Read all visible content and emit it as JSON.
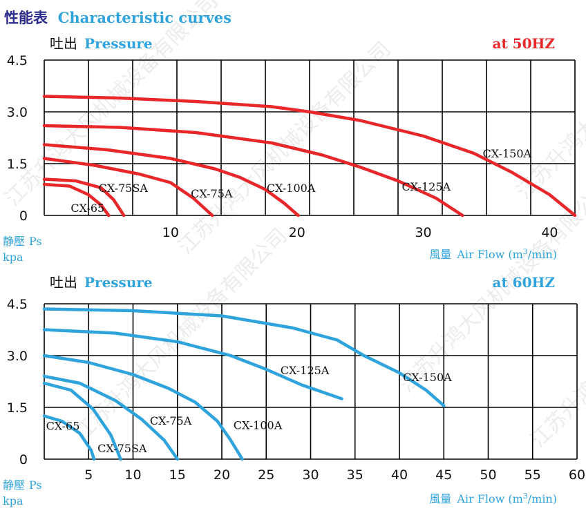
{
  "page_title": {
    "cn": "性能表",
    "en": "Characteristic curves",
    "color": "#2fa3dc",
    "cn_color": "#2a2a8a"
  },
  "colors": {
    "red_curve": "#e8272a",
    "blue_curve": "#2fa3dc",
    "grid": "#000000",
    "watermark": "#dddddd"
  },
  "watermark": "江苏升鸿大风机械设备有限公司",
  "chart_data": [
    {
      "type": "line",
      "frequency_label": "at  50HZ",
      "frequency_color": "#e8272a",
      "ylabel_cn": "吐出",
      "ylabel_en": "Pressure",
      "static_cn": "静壓",
      "static_en": "Ps",
      "unit": "kpa",
      "xlabel_cn": "風量",
      "xlabel_en_prefix": "Air Flow (m",
      "xlabel_sup": "3",
      "xlabel_en_suffix": "/min)",
      "xlim": [
        0,
        42
      ],
      "ylim": [
        0,
        4.5
      ],
      "grid": true,
      "x_ticks": [
        10,
        20,
        30,
        40
      ],
      "y_ticks": [
        "4.5",
        "3.0",
        "1.5",
        "0"
      ],
      "vgrid": [
        0,
        3.5,
        7,
        10.5,
        14,
        17.5,
        21,
        24.5,
        28,
        31.5,
        35,
        38.5,
        42
      ],
      "series": [
        {
          "name": "CX-65",
          "x": [
            0,
            2,
            3.5,
            4.5,
            5.1
          ],
          "y": [
            0.9,
            0.85,
            0.6,
            0.3,
            0
          ]
        },
        {
          "name": "CX-75SA",
          "x": [
            0,
            2.5,
            4.5,
            5.5,
            6.3
          ],
          "y": [
            1.05,
            1.0,
            0.8,
            0.45,
            0
          ]
        },
        {
          "name": "CX-75A",
          "x": [
            0,
            4,
            7.5,
            10,
            11.8,
            13.3
          ],
          "y": [
            1.65,
            1.45,
            1.2,
            0.95,
            0.5,
            0
          ]
        },
        {
          "name": "CX-100A",
          "x": [
            0,
            5,
            10,
            13.5,
            15.5,
            17.5,
            19,
            20.1
          ],
          "y": [
            2.05,
            1.9,
            1.65,
            1.35,
            1.1,
            0.75,
            0.35,
            0
          ]
        },
        {
          "name": "CX-125A",
          "x": [
            0,
            6,
            12,
            18,
            22,
            25,
            28,
            31,
            33.1
          ],
          "y": [
            2.6,
            2.55,
            2.4,
            2.1,
            1.75,
            1.4,
            1.0,
            0.5,
            0
          ]
        },
        {
          "name": "CX-150A",
          "x": [
            0,
            6,
            12,
            18,
            21,
            25,
            30,
            34,
            37,
            40,
            42
          ],
          "y": [
            3.45,
            3.4,
            3.3,
            3.15,
            3.0,
            2.75,
            2.3,
            1.8,
            1.25,
            0.6,
            0
          ]
        }
      ],
      "labels": [
        {
          "text": "CX-65",
          "x": 2.1,
          "y": 0.1
        },
        {
          "text": "CX-75SA",
          "x": 4.3,
          "y": 0.68
        },
        {
          "text": "CX-75A",
          "x": 11.6,
          "y": 0.52
        },
        {
          "text": "CX-100A",
          "x": 17.6,
          "y": 0.68
        },
        {
          "text": "CX-125A",
          "x": 28.3,
          "y": 0.72
        },
        {
          "text": "CX-150A",
          "x": 34.7,
          "y": 1.68
        }
      ]
    },
    {
      "type": "line",
      "frequency_label": "at  60HZ",
      "frequency_color": "#2fa3dc",
      "ylabel_cn": "吐出",
      "ylabel_en": "Pressure",
      "static_cn": "静壓",
      "static_en": "Ps",
      "unit": "kpa",
      "xlabel_cn": "風量",
      "xlabel_en_prefix": "Air Flow (m",
      "xlabel_sup": "3",
      "xlabel_en_suffix": "/min)",
      "xlim": [
        0,
        60
      ],
      "ylim": [
        0,
        4.5
      ],
      "grid": true,
      "x_ticks": [
        5,
        10,
        15,
        20,
        25,
        30,
        35,
        40,
        45,
        50,
        55,
        60
      ],
      "y_ticks": [
        "4.5",
        "3.0",
        "1.5",
        "0"
      ],
      "vgrid": [
        0,
        5,
        10,
        15,
        20,
        25,
        30,
        35,
        40,
        45,
        50,
        55,
        60
      ],
      "series": [
        {
          "name": "CX-65",
          "x": [
            0,
            2,
            4,
            5.3,
            5.6
          ],
          "y": [
            1.25,
            1.1,
            0.75,
            0.25,
            0
          ]
        },
        {
          "name": "CX-75SA",
          "x": [
            0,
            3,
            5.5,
            7.5,
            8.6
          ],
          "y": [
            2.2,
            2.0,
            1.45,
            0.7,
            0
          ]
        },
        {
          "name": "CX-75A",
          "x": [
            0,
            4,
            8,
            11,
            13.5,
            15
          ],
          "y": [
            2.4,
            2.2,
            1.7,
            1.15,
            0.55,
            0
          ]
        },
        {
          "name": "CX-100A",
          "x": [
            0,
            5,
            10,
            14,
            17,
            19.5,
            21,
            22.3
          ],
          "y": [
            3.0,
            2.8,
            2.45,
            2.05,
            1.65,
            1.1,
            0.55,
            0
          ]
        },
        {
          "name": "CX-125A",
          "x": [
            0,
            8,
            15,
            21,
            25,
            29,
            33.5
          ],
          "y": [
            3.75,
            3.65,
            3.4,
            3.0,
            2.6,
            2.15,
            1.75
          ]
        },
        {
          "name": "CX-150A",
          "x": [
            0,
            10,
            20,
            28,
            33,
            36,
            40,
            43,
            45
          ],
          "y": [
            4.35,
            4.3,
            4.15,
            3.8,
            3.45,
            3.0,
            2.5,
            2.0,
            1.55
          ]
        }
      ],
      "labels": [
        {
          "text": "CX-65",
          "x": 0.2,
          "y": 0.85
        },
        {
          "text": "CX-75SA",
          "x": 6.0,
          "y": 0.2
        },
        {
          "text": "CX-75A",
          "x": 11.9,
          "y": 1.0
        },
        {
          "text": "CX-100A",
          "x": 21.3,
          "y": 0.87
        },
        {
          "text": "CX-125A",
          "x": 26.6,
          "y": 2.46
        },
        {
          "text": "CX-150A",
          "x": 40.4,
          "y": 2.26
        }
      ]
    }
  ]
}
